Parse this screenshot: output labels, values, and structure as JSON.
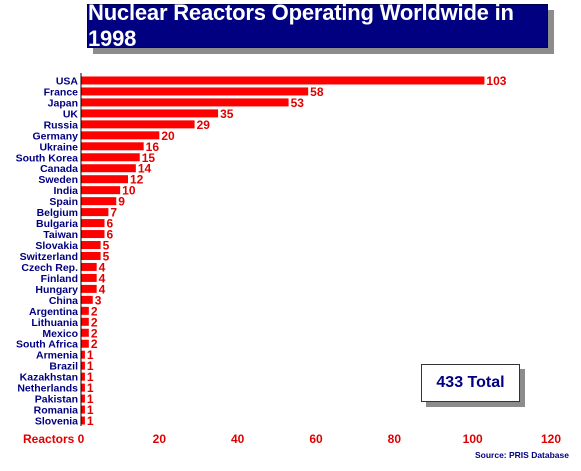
{
  "title": "Nuclear Reactors Operating Worldwide in 1998",
  "total_label": "433 Total",
  "source": "Source: PRIS Database",
  "colors": {
    "bar": "#ff0000",
    "title_bg": "#000080",
    "category_text": "#000080",
    "value_text": "#e00000"
  },
  "chart_data": {
    "type": "bar",
    "orientation": "horizontal",
    "title": "Nuclear Reactors Operating Worldwide in 1998",
    "xlabel": "Reactors",
    "ylabel": "",
    "xlim": [
      0,
      120
    ],
    "xticks": [
      0,
      20,
      40,
      60,
      80,
      100,
      120
    ],
    "grid": false,
    "categories": [
      "USA",
      "France",
      "Japan",
      "UK",
      "Russia",
      "Germany",
      "Ukraine",
      "South Korea",
      "Canada",
      "Sweden",
      "India",
      "Spain",
      "Belgium",
      "Bulgaria",
      "Taiwan",
      "Slovakia",
      "Switzerland",
      "Czech Rep.",
      "Finland",
      "Hungary",
      "China",
      "Argentina",
      "Lithuania",
      "Mexico",
      "South Africa",
      "Armenia",
      "Brazil",
      "Kazakhstan",
      "Netherlands",
      "Pakistan",
      "Romania",
      "Slovenia"
    ],
    "values": [
      103,
      58,
      53,
      35,
      29,
      20,
      16,
      15,
      14,
      12,
      10,
      9,
      7,
      6,
      6,
      5,
      5,
      4,
      4,
      4,
      3,
      2,
      2,
      2,
      2,
      1,
      1,
      1,
      1,
      1,
      1,
      1
    ]
  }
}
